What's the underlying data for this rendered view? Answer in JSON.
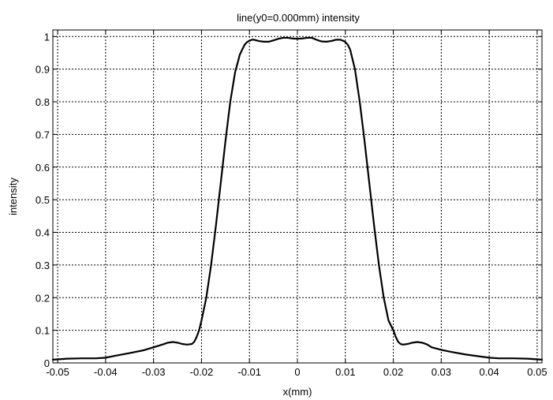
{
  "chart_data": {
    "type": "line",
    "title": "line(y0=0.000mm) intensity",
    "xlabel": "x(mm)",
    "ylabel": "intensity",
    "xlim": [
      -0.051,
      0.051
    ],
    "ylim": [
      0,
      1.02
    ],
    "grid": true,
    "xticks": [
      -0.05,
      -0.04,
      -0.03,
      -0.02,
      -0.01,
      0,
      0.01,
      0.02,
      0.03,
      0.04,
      0.05
    ],
    "xtick_labels": [
      "-0.05",
      "-0.04",
      "-0.03",
      "-0.02",
      "-0.01",
      "0",
      "0.01",
      "0.02",
      "0.03",
      "0.04",
      "0.05"
    ],
    "yticks": [
      0,
      0.1,
      0.2,
      0.3,
      0.4,
      0.5,
      0.6,
      0.7,
      0.8,
      0.9,
      1
    ],
    "ytick_labels": [
      "0",
      "0.1",
      "0.2",
      "0.3",
      "0.4",
      "0.5",
      "0.6",
      "0.7",
      "0.8",
      "0.9",
      "1"
    ],
    "series": [
      {
        "color": "#000000",
        "x": [
          -0.051,
          -0.048,
          -0.045,
          -0.042,
          -0.04,
          -0.038,
          -0.035,
          -0.032,
          -0.03,
          -0.028,
          -0.027,
          -0.026,
          -0.025,
          -0.024,
          -0.023,
          -0.022,
          -0.0215,
          -0.021,
          -0.0205,
          -0.02,
          -0.019,
          -0.018,
          -0.017,
          -0.016,
          -0.015,
          -0.014,
          -0.013,
          -0.012,
          -0.011,
          -0.0105,
          -0.01,
          -0.0095,
          -0.009,
          -0.008,
          -0.007,
          -0.006,
          -0.005,
          -0.004,
          -0.003,
          -0.002,
          -0.001,
          0,
          0.001,
          0.002,
          0.003,
          0.004,
          0.005,
          0.006,
          0.007,
          0.008,
          0.009,
          0.0095,
          0.01,
          0.0105,
          0.011,
          0.012,
          0.013,
          0.014,
          0.015,
          0.016,
          0.017,
          0.018,
          0.019,
          0.02,
          0.0205,
          0.021,
          0.0215,
          0.022,
          0.023,
          0.024,
          0.025,
          0.026,
          0.027,
          0.028,
          0.03,
          0.032,
          0.035,
          0.038,
          0.04,
          0.042,
          0.045,
          0.048,
          0.051
        ],
        "y": [
          0.01,
          0.013,
          0.014,
          0.014,
          0.016,
          0.022,
          0.03,
          0.039,
          0.048,
          0.057,
          0.062,
          0.064,
          0.062,
          0.058,
          0.056,
          0.058,
          0.065,
          0.08,
          0.1,
          0.13,
          0.2,
          0.3,
          0.42,
          0.55,
          0.68,
          0.8,
          0.89,
          0.945,
          0.975,
          0.983,
          0.987,
          0.99,
          0.99,
          0.986,
          0.984,
          0.984,
          0.988,
          0.993,
          0.996,
          0.996,
          0.994,
          0.993,
          0.994,
          0.996,
          0.996,
          0.99,
          0.985,
          0.984,
          0.986,
          0.99,
          0.99,
          0.987,
          0.983,
          0.975,
          0.96,
          0.9,
          0.8,
          0.68,
          0.55,
          0.42,
          0.3,
          0.2,
          0.13,
          0.1,
          0.08,
          0.065,
          0.058,
          0.056,
          0.058,
          0.062,
          0.064,
          0.062,
          0.057,
          0.048,
          0.04,
          0.034,
          0.026,
          0.02,
          0.016,
          0.014,
          0.014,
          0.013,
          0.01
        ]
      }
    ]
  }
}
